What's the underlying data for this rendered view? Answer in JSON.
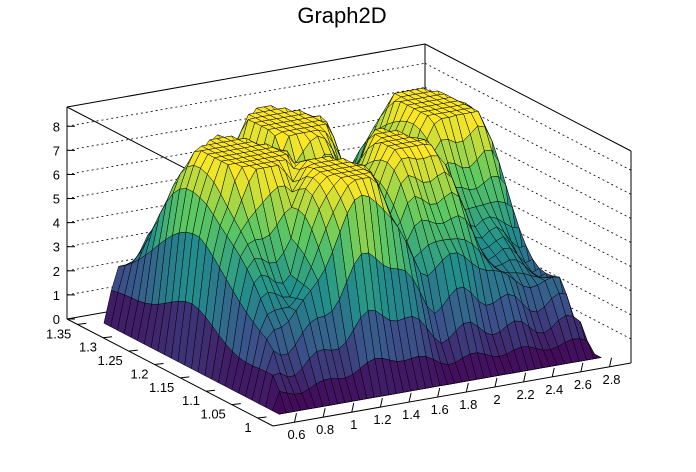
{
  "chart_data": {
    "type": "surface3d",
    "title": "Graph2D",
    "xlabel": "",
    "ylabel": "",
    "zlabel": "",
    "x_ticks": [
      "0.6",
      "0.8",
      "1",
      "1.2",
      "1.4",
      "1.6",
      "1.8",
      "2",
      "2.2",
      "2.4",
      "2.6",
      "2.8"
    ],
    "y_ticks": [
      "1",
      "1.05",
      "1.1",
      "1.15",
      "1.2",
      "1.25",
      "1.3",
      "1.35"
    ],
    "z_ticks": [
      "0",
      "1",
      "2",
      "3",
      "4",
      "5",
      "6",
      "7",
      "8"
    ],
    "xlim": [
      0.45,
      2.95
    ],
    "ylim": [
      0.97,
      1.37
    ],
    "zlim": [
      0,
      8.8
    ],
    "grid": true,
    "colormap": "viridis",
    "surface_peaks": [
      {
        "x": 1.05,
        "y": 1.2,
        "z": 7.6
      },
      {
        "x": 1.6,
        "y": 1.27,
        "z": 7.3
      },
      {
        "x": 2.55,
        "y": 1.25,
        "z": 7.4
      },
      {
        "x": 1.4,
        "y": 1.1,
        "z": 6.6
      },
      {
        "x": 2.0,
        "y": 1.15,
        "z": 5.8
      }
    ]
  }
}
